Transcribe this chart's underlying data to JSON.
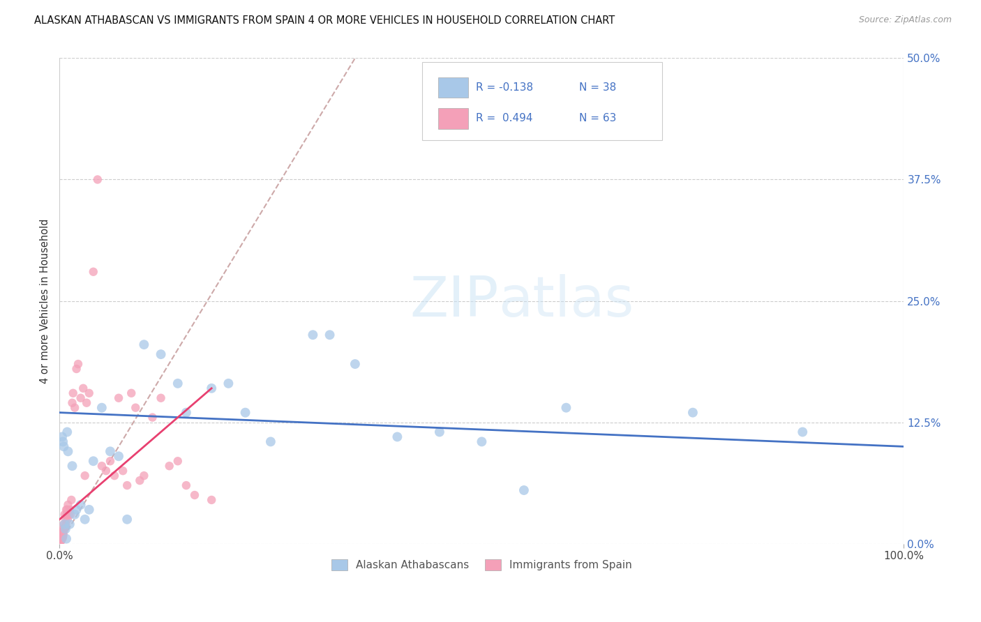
{
  "title": "ALASKAN ATHABASCAN VS IMMIGRANTS FROM SPAIN 4 OR MORE VEHICLES IN HOUSEHOLD CORRELATION CHART",
  "source": "Source: ZipAtlas.com",
  "ylabel": "4 or more Vehicles in Household",
  "watermark_zip": "ZIP",
  "watermark_atlas": "atlas",
  "xlim": [
    0.0,
    100.0
  ],
  "ylim": [
    0.0,
    50.0
  ],
  "yticks": [
    0.0,
    12.5,
    25.0,
    37.5,
    50.0
  ],
  "grid_color": "#cccccc",
  "background_color": "#ffffff",
  "blue_color": "#a8c8e8",
  "pink_color": "#f4a0b8",
  "trend_blue_color": "#4472c4",
  "trend_pink_color": "#e84070",
  "dashed_color": "#c8a0a0",
  "tick_label_color": "#4472c4",
  "blue_scatter_x": [
    0.3,
    0.4,
    0.5,
    0.6,
    0.7,
    0.8,
    0.9,
    1.0,
    1.2,
    1.5,
    1.8,
    2.0,
    2.5,
    3.0,
    3.5,
    4.0,
    5.0,
    6.0,
    7.0,
    8.0,
    10.0,
    12.0,
    14.0,
    15.0,
    18.0,
    20.0,
    22.0,
    25.0,
    30.0,
    32.0,
    35.0,
    40.0,
    45.0,
    50.0,
    55.0,
    60.0,
    75.0,
    88.0
  ],
  "blue_scatter_y": [
    11.0,
    10.5,
    10.0,
    2.0,
    1.5,
    0.5,
    11.5,
    9.5,
    2.0,
    8.0,
    3.0,
    3.5,
    4.0,
    2.5,
    3.5,
    8.5,
    14.0,
    9.5,
    9.0,
    2.5,
    20.5,
    19.5,
    16.5,
    13.5,
    16.0,
    16.5,
    13.5,
    10.5,
    21.5,
    21.5,
    18.5,
    11.0,
    11.5,
    10.5,
    5.5,
    14.0,
    13.5,
    11.5
  ],
  "pink_scatter_x": [
    0.05,
    0.08,
    0.1,
    0.12,
    0.15,
    0.18,
    0.2,
    0.22,
    0.25,
    0.28,
    0.3,
    0.33,
    0.35,
    0.38,
    0.4,
    0.42,
    0.45,
    0.48,
    0.5,
    0.55,
    0.6,
    0.65,
    0.7,
    0.75,
    0.8,
    0.85,
    0.9,
    0.95,
    1.0,
    1.1,
    1.2,
    1.3,
    1.4,
    1.5,
    1.6,
    1.8,
    2.0,
    2.2,
    2.5,
    2.8,
    3.0,
    3.2,
    3.5,
    4.0,
    4.5,
    5.0,
    5.5,
    6.0,
    6.5,
    7.0,
    7.5,
    8.0,
    8.5,
    9.0,
    9.5,
    10.0,
    11.0,
    12.0,
    13.0,
    14.0,
    15.0,
    16.0,
    18.0
  ],
  "pink_scatter_y": [
    0.5,
    0.3,
    0.4,
    0.2,
    0.5,
    0.3,
    0.6,
    0.4,
    0.8,
    0.5,
    1.0,
    0.7,
    1.2,
    0.6,
    1.5,
    0.8,
    1.0,
    1.3,
    2.0,
    1.5,
    3.0,
    1.8,
    2.5,
    2.0,
    3.5,
    3.0,
    3.5,
    2.5,
    4.0,
    3.0,
    3.5,
    3.0,
    4.5,
    14.5,
    15.5,
    14.0,
    18.0,
    18.5,
    15.0,
    16.0,
    7.0,
    14.5,
    15.5,
    28.0,
    37.5,
    8.0,
    7.5,
    8.5,
    7.0,
    15.0,
    7.5,
    6.0,
    15.5,
    14.0,
    6.5,
    7.0,
    13.0,
    15.0,
    8.0,
    8.5,
    6.0,
    5.0,
    4.5
  ],
  "blue_trend_x0": 0.0,
  "blue_trend_x1": 100.0,
  "blue_trend_y0": 13.5,
  "blue_trend_y1": 10.0,
  "pink_trend_x0": 0.0,
  "pink_trend_x1": 18.0,
  "pink_trend_y0": 2.5,
  "pink_trend_y1": 16.0,
  "dash_x0": 0.0,
  "dash_y0": 0.0,
  "dash_x1": 35.0,
  "dash_y1": 50.0
}
